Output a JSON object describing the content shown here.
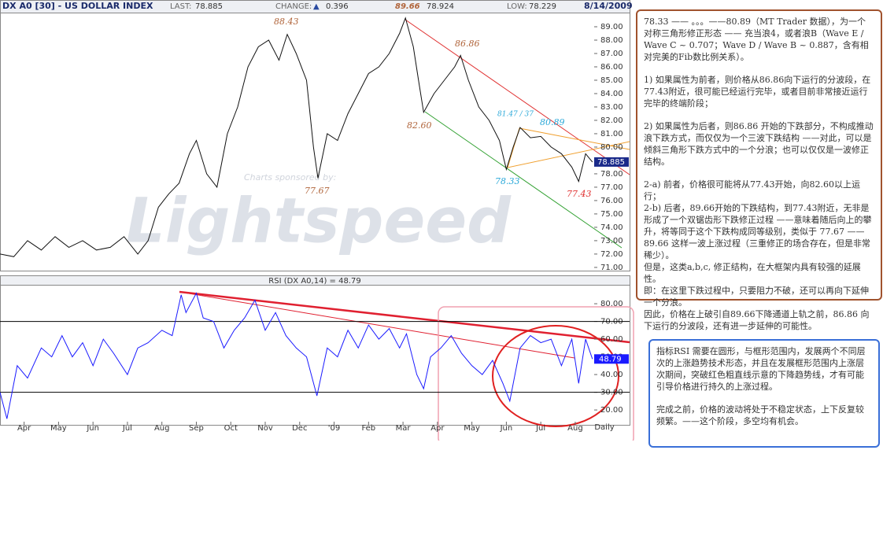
{
  "header": {
    "symbol": "DX A0 [30] - US DOLLAR INDEX",
    "last_label": "LAST:",
    "last": 78.885,
    "change_label": "CHANGE:",
    "change_arrow": "▲",
    "change": 0.396,
    "high": 89.66,
    "open": 78.924,
    "low_label": "LOW:",
    "low": 78.229,
    "date": "8/14/2009"
  },
  "watermark": {
    "sponsor": "Charts sponsored by:",
    "brand": "Lightspeed"
  },
  "chart_data": [
    {
      "type": "line",
      "color": "#111111",
      "x": [
        0.3,
        0.7,
        1.1,
        1.5,
        1.9,
        2.3,
        2.7,
        3.1,
        3.5,
        3.9,
        4.3,
        4.6,
        4.9,
        5.2,
        5.5,
        5.8,
        6.0,
        6.3,
        6.6,
        6.9,
        7.2,
        7.5,
        7.8,
        8.1,
        8.4,
        8.64,
        8.9,
        9.2,
        9.4,
        9.53,
        9.8,
        10.1,
        10.4,
        10.7,
        11.0,
        11.3,
        11.6,
        11.9,
        12.07,
        12.3,
        12.45,
        12.6,
        12.9,
        13.2,
        13.5,
        13.67,
        13.9,
        14.2,
        14.5,
        14.8,
        15.0,
        15.2,
        15.4,
        15.7,
        16.0,
        16.3,
        16.6,
        16.9,
        17.1,
        17.3,
        17.5
      ],
      "values": [
        72,
        71.8,
        73,
        72.3,
        73.3,
        72.5,
        73,
        72.3,
        72.5,
        73.3,
        72,
        73,
        75.5,
        76.5,
        77.3,
        79.5,
        80.5,
        78,
        77,
        81,
        83,
        86,
        87.5,
        88,
        86.5,
        88.43,
        87,
        85,
        80,
        77.67,
        81,
        80.5,
        82.5,
        84,
        85.5,
        86,
        87,
        88.5,
        89.66,
        87.5,
        85,
        82.6,
        84,
        85,
        86,
        86.86,
        85,
        83,
        82,
        80.5,
        78.33,
        80,
        81.47,
        80.7,
        80.8,
        80,
        79.5,
        78.5,
        77.43,
        79.5,
        78.885
      ],
      "xlim": [
        0.3,
        17.55
      ],
      "ylim": [
        70.7,
        90
      ],
      "yticks": [
        {
          "value": 71,
          "label": "71.00"
        },
        {
          "value": 72,
          "label": "72.00"
        },
        {
          "value": 73,
          "label": "73.00"
        },
        {
          "value": 74,
          "label": "74.00"
        },
        {
          "value": 75,
          "label": "75.00"
        },
        {
          "value": 76,
          "label": "76.00"
        },
        {
          "value": 77,
          "label": "77.00"
        },
        {
          "value": 78,
          "label": "78.00"
        },
        {
          "value": 79,
          "label": "79.00"
        },
        {
          "value": 80,
          "label": "80.00"
        },
        {
          "value": 81,
          "label": "81.00"
        },
        {
          "value": 82,
          "label": "82.00"
        },
        {
          "value": 83,
          "label": "83.00"
        },
        {
          "value": 84,
          "label": "84.00"
        },
        {
          "value": 85,
          "label": "85.00"
        },
        {
          "value": 86,
          "label": "86.00"
        },
        {
          "value": 87,
          "label": "87.00"
        },
        {
          "value": 88,
          "label": "88.00"
        },
        {
          "value": 89,
          "label": "89.00"
        }
      ],
      "annotations": [
        "88.43",
        "77.67",
        "89.66",
        "82.60",
        "86.86",
        "78.33",
        "81.47 / 37",
        "80.89",
        "77.43"
      ]
    },
    {
      "type": "line",
      "title": "RSI (DX A0,14) = 48.79",
      "color": "#1a1aff",
      "last": 48.79,
      "x": [
        0.3,
        0.5,
        0.8,
        1.1,
        1.5,
        1.8,
        2.1,
        2.4,
        2.7,
        3.0,
        3.3,
        3.6,
        4.0,
        4.3,
        4.6,
        5.0,
        5.3,
        5.56,
        5.7,
        6.0,
        6.2,
        6.5,
        6.8,
        7.1,
        7.4,
        7.7,
        8.0,
        8.3,
        8.6,
        8.9,
        9.2,
        9.5,
        9.8,
        10.1,
        10.4,
        10.7,
        11.0,
        11.3,
        11.6,
        11.9,
        12.1,
        12.4,
        12.6,
        12.8,
        13.1,
        13.4,
        13.7,
        14.0,
        14.3,
        14.6,
        14.9,
        15.1,
        15.4,
        15.7,
        16.0,
        16.3,
        16.6,
        16.9,
        17.1,
        17.3,
        17.5
      ],
      "values": [
        30,
        15,
        45,
        38,
        55,
        50,
        62,
        50,
        58,
        45,
        60,
        52,
        40,
        55,
        58,
        65,
        62,
        85,
        75,
        86,
        72,
        70,
        55,
        65,
        72,
        82,
        65,
        75,
        62,
        55,
        50,
        28,
        55,
        50,
        65,
        55,
        68,
        60,
        66,
        55,
        63,
        40,
        32,
        50,
        55,
        62,
        52,
        45,
        40,
        48,
        35,
        25,
        55,
        62,
        58,
        60,
        45,
        60,
        35,
        60,
        48.79
      ],
      "xlim": [
        0.3,
        17.55
      ],
      "ylim": [
        11.6,
        90.7
      ],
      "yticks": [
        {
          "value": 20,
          "label": "20.00"
        },
        {
          "value": 30,
          "label": "30.00"
        },
        {
          "value": 40,
          "label": "40.00"
        },
        {
          "value": 50,
          "label": "50.00"
        },
        {
          "value": 60,
          "label": "60.00"
        },
        {
          "value": 70,
          "label": "70.00"
        },
        {
          "value": 80,
          "label": "80.00"
        }
      ],
      "hlines": [
        70,
        30
      ],
      "xticks": [
        {
          "value": 1,
          "label": "Apr"
        },
        {
          "value": 2,
          "label": "May"
        },
        {
          "value": 3,
          "label": "Jun"
        },
        {
          "value": 4,
          "label": "Jul"
        },
        {
          "value": 5,
          "label": "Aug"
        },
        {
          "value": 6,
          "label": "Sep"
        },
        {
          "value": 7,
          "label": "Oct"
        },
        {
          "value": 8,
          "label": "Nov"
        },
        {
          "value": 9,
          "label": "Dec"
        },
        {
          "value": 10,
          "label": "'09"
        },
        {
          "value": 11,
          "label": "Feb"
        },
        {
          "value": 12,
          "label": "Mar"
        },
        {
          "value": 13,
          "label": "Apr"
        },
        {
          "value": 14,
          "label": "May"
        },
        {
          "value": 15,
          "label": "Jun"
        },
        {
          "value": 16,
          "label": "Jul"
        },
        {
          "value": 17,
          "label": "Aug"
        }
      ],
      "period": "Daily"
    }
  ],
  "notes": {
    "right": [
      "78.33 —— 。。。——80.89（MT Trader 数据），为一个对称三角形修正形态 —— 充当浪4，或者浪B（Wave E / Wave C ~ 0.707；Wave D / Wave B ~ 0.887，含有相对完美的Fib数比例关系）。",
      "1) 如果属性为前者，则价格从86.86向下运行的分波段，在77.43附近，很可能已经运行完毕，或者目前非常接近运行完毕的终端阶段；",
      "2) 如果属性为后者，则86.86 开始的下跌部分，不构成推动浪下跌方式，而仅仅为一个三波下跌结构 ——对此，可以是倾斜三角形下跌方式中的一个分浪；也可以仅仅是一波修正结构。",
      "2-a) 前者，价格很可能将从77.43开始，向82.60以上运行；",
      "2-b) 后者，89.66开始的下跌结构，到77.43附近，无非是形成了一个双锯齿形下跌修正过程 ——意味着随后向上的攀升，将等同于这个下跌构成同等级别，类似于 77.67 —— 89.66 这样一波上涨过程（三重修正的场合存在，但是非常稀少）。",
      "但是，这类a,b,c, 修正结构，在大框架内具有较强的延展性。",
      "即：在这里下跌过程中，只要阻力不破，还可以再向下延伸一个分浪。",
      "因此，价格在上破引自89.66下降通道上轨之前，86.86 向下运行的分波段，还有进一步延伸的可能性。"
    ],
    "blue": [
      "指标RSI 需要在圆形，与框形范围内，发展两个不同层次的上涨趋势技术形态，并且在发展框形范围内上涨层次期间，突破红色粗直线示意的下降趋势线，才有可能引导价格进行持久的上涨过程。",
      "完成之前，价格的波动将处于不稳定状态，上下反复较频繁。——这个阶段，多空均有机会。"
    ]
  }
}
